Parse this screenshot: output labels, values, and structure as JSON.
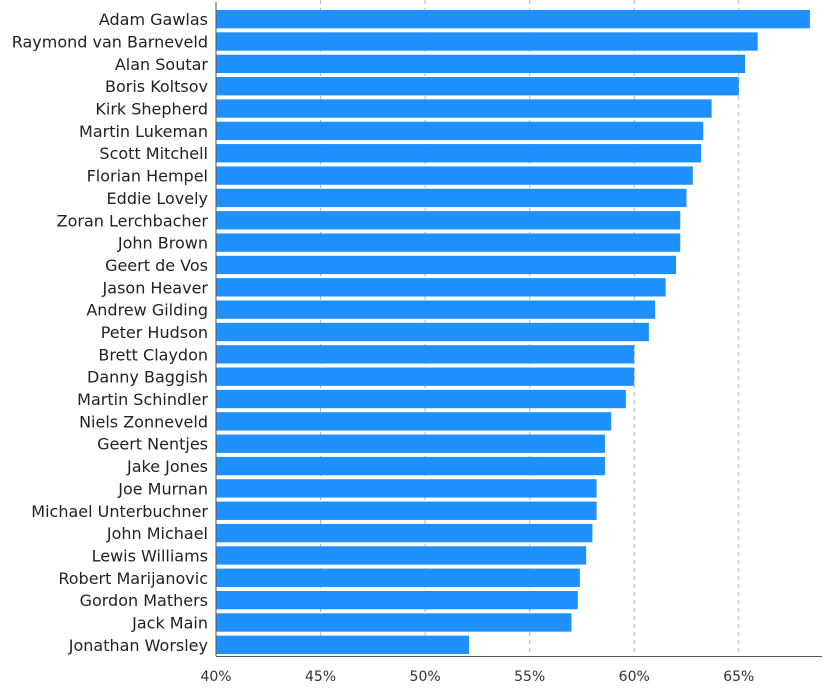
{
  "chart_data": {
    "type": "bar",
    "orientation": "horizontal",
    "bar_color": "#1e90ff",
    "gridline_color": "#b4b4b4",
    "grid": "vertical dashed",
    "legend": "none",
    "title": "",
    "xlabel": "",
    "ylabel": "",
    "xlim": [
      40,
      68.5
    ],
    "x_ticks": [
      40,
      45,
      50,
      55,
      60,
      65
    ],
    "x_tick_labels": [
      "40%",
      "45%",
      "50%",
      "55%",
      "60%",
      "65%"
    ],
    "categories": [
      "Adam Gawlas",
      "Raymond van Barneveld",
      "Alan Soutar",
      "Boris Koltsov",
      "Kirk Shepherd",
      "Martin Lukeman",
      "Scott Mitchell",
      "Florian Hempel",
      "Eddie Lovely",
      "Zoran Lerchbacher",
      "John Brown",
      "Geert de Vos",
      "Jason Heaver",
      "Andrew Gilding",
      "Peter Hudson",
      "Brett Claydon",
      "Danny Baggish",
      "Martin Schindler",
      "Niels Zonneveld",
      "Geert Nentjes",
      "Jake Jones",
      "Joe Murnan",
      "Michael Unterbuchner",
      "John Michael",
      "Lewis Williams",
      "Robert Marijanovic",
      "Gordon Mathers",
      "Jack Main",
      "Jonathan Worsley"
    ],
    "values": [
      68.4,
      65.9,
      65.3,
      65.0,
      63.7,
      63.3,
      63.2,
      62.8,
      62.5,
      62.2,
      62.2,
      62.0,
      61.5,
      61.0,
      60.7,
      60.0,
      60.0,
      59.6,
      58.9,
      58.6,
      58.6,
      58.2,
      58.2,
      58.0,
      57.7,
      57.4,
      57.3,
      57.0,
      52.1
    ]
  }
}
